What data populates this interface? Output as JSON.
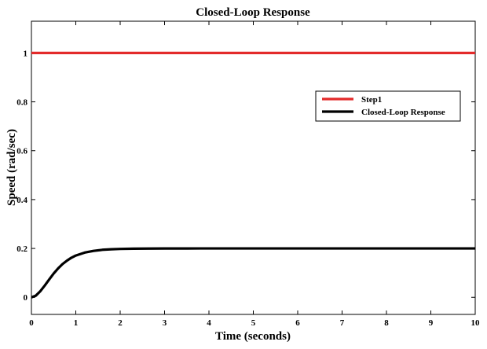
{
  "chart_data": {
    "type": "line",
    "title": "Closed-Loop Response",
    "xlabel": "Time (seconds)",
    "ylabel": "Speed (rad/sec)",
    "xlim": [
      0,
      10
    ],
    "ylim": [
      -0.07,
      1.13
    ],
    "xticks": [
      0,
      1,
      2,
      3,
      4,
      5,
      6,
      7,
      8,
      9,
      10
    ],
    "yticks": [
      0,
      0.2,
      0.4,
      0.6,
      0.8,
      1
    ],
    "xtick_labels": [
      "0",
      "1",
      "2",
      "3",
      "4",
      "5",
      "6",
      "7",
      "8",
      "9",
      "10"
    ],
    "ytick_labels": [
      "0",
      "0.2",
      "0.4",
      "0.6",
      "0.8",
      "1"
    ],
    "grid": false,
    "legend_position": "top-right",
    "series": [
      {
        "name": "Step1",
        "color": "#e32a2a",
        "x": [
          0,
          10
        ],
        "y": [
          1,
          1
        ]
      },
      {
        "name": "Closed-Loop Response",
        "color": "#000000",
        "x": [
          0,
          0.1,
          0.2,
          0.3,
          0.4,
          0.5,
          0.6,
          0.7,
          0.8,
          0.9,
          1.0,
          1.2,
          1.4,
          1.6,
          1.8,
          2.0,
          2.3,
          2.6,
          3.0,
          3.5,
          4.0,
          5.0,
          6.0,
          7.0,
          8.0,
          9.0,
          10.0
        ],
        "y": [
          0,
          0.007,
          0.025,
          0.048,
          0.073,
          0.097,
          0.118,
          0.136,
          0.15,
          0.162,
          0.171,
          0.183,
          0.19,
          0.1945,
          0.1967,
          0.198,
          0.199,
          0.1995,
          0.1998,
          0.1999,
          0.2,
          0.2,
          0.2,
          0.2,
          0.2,
          0.2,
          0.2
        ]
      }
    ]
  }
}
